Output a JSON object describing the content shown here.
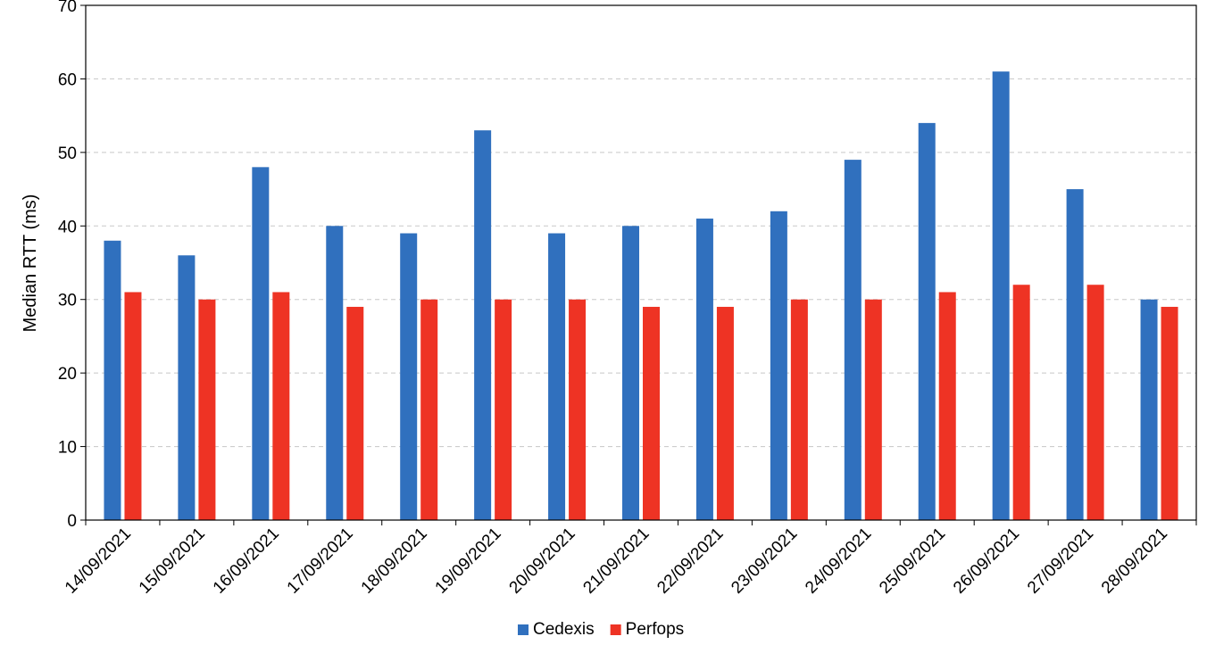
{
  "chart_data": {
    "type": "bar",
    "title": "",
    "xlabel": "",
    "ylabel": "Median RTT (ms)",
    "ylim": [
      0,
      70
    ],
    "yticks": [
      0,
      10,
      20,
      30,
      40,
      50,
      60,
      70
    ],
    "grid": "horizontal dashed",
    "legend_position": "bottom-center",
    "categories": [
      "14/09/2021",
      "15/09/2021",
      "16/09/2021",
      "17/09/2021",
      "18/09/2021",
      "19/09/2021",
      "20/09/2021",
      "21/09/2021",
      "22/09/2021",
      "23/09/2021",
      "24/09/2021",
      "25/09/2021",
      "26/09/2021",
      "27/09/2021",
      "28/09/2021"
    ],
    "series": [
      {
        "name": "Cedexis",
        "color": "#3070be",
        "values": [
          38,
          36,
          48,
          40,
          39,
          53,
          39,
          40,
          41,
          42,
          49,
          54,
          61,
          45,
          30
        ]
      },
      {
        "name": "Perfops",
        "color": "#ee3324",
        "values": [
          31,
          30,
          31,
          29,
          30,
          30,
          30,
          29,
          29,
          30,
          30,
          31,
          32,
          32,
          29
        ]
      }
    ]
  }
}
